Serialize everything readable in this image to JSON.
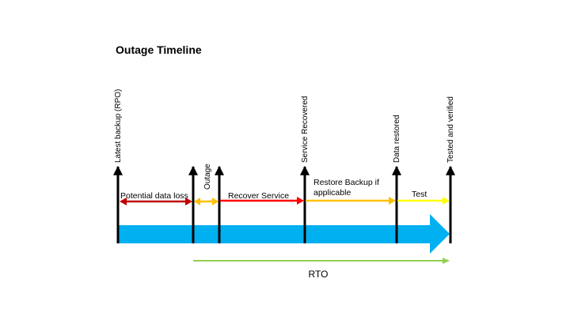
{
  "title": "Outage Timeline",
  "milestones": [
    {
      "label": "Latest backup (RPO)"
    },
    {
      "label": "Outage"
    },
    {
      "label": "Service Recovered"
    },
    {
      "label": "Data restored"
    },
    {
      "label": "Tested and verified"
    }
  ],
  "phases": [
    {
      "label": "Potential data loss",
      "color": "#c00000"
    },
    {
      "label": "Recover Service",
      "color": "#ff0000"
    },
    {
      "label": "Restore Backup if applicable",
      "label_lines": [
        "Restore Backup if",
        "applicable"
      ],
      "color": "#ffc000"
    },
    {
      "label": "Test",
      "color": "#ffff00"
    }
  ],
  "outage_arrow_color": "#ffc000",
  "timeline_color": "#00b0f0",
  "rto": {
    "label": "RTO",
    "color": "#92d050"
  }
}
